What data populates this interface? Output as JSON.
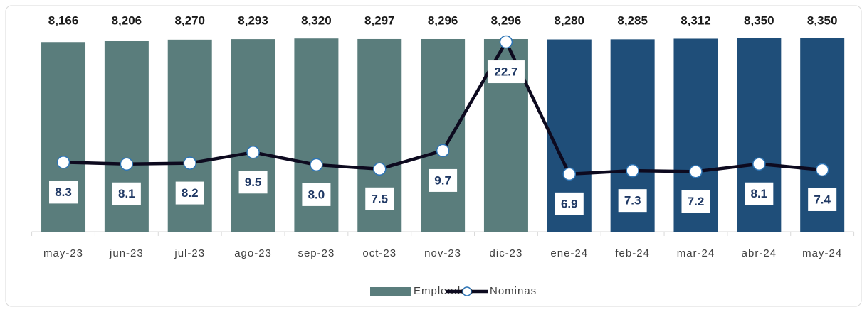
{
  "chart_data": {
    "type": "bar_line",
    "categories": [
      "may-23",
      "jun-23",
      "jul-23",
      "ago-23",
      "sep-23",
      "oct-23",
      "nov-23",
      "dic-23",
      "ene-24",
      "feb-24",
      "mar-24",
      "abr-24",
      "may-24"
    ],
    "series": [
      {
        "name": "Empleados",
        "type": "bar",
        "color": "#5a7d7c",
        "colors": [
          "#5a7d7c",
          "#5a7d7c",
          "#5a7d7c",
          "#5a7d7c",
          "#5a7d7c",
          "#5a7d7c",
          "#5a7d7c",
          "#5a7d7c",
          "#1f4e79",
          "#1f4e79",
          "#1f4e79",
          "#1f4e79",
          "#1f4e79"
        ],
        "values": [
          8166,
          8206,
          8270,
          8293,
          8320,
          8297,
          8296,
          8296,
          8280,
          8285,
          8312,
          8350,
          8350
        ],
        "value_labels": [
          "8,166",
          "8,206",
          "8,270",
          "8,293",
          "8,320",
          "8,297",
          "8,296",
          "8,296",
          "8,280",
          "8,285",
          "8,312",
          "8,350",
          "8,350"
        ]
      },
      {
        "name": "Nominas",
        "type": "line",
        "axis": "y2",
        "color": "#0d0a1f",
        "marker_color": "#2e75b6",
        "values": [
          8.3,
          8.1,
          8.2,
          9.5,
          8.0,
          7.5,
          9.7,
          22.7,
          6.9,
          7.3,
          7.2,
          8.1,
          7.4
        ],
        "value_labels": [
          "8.3",
          "8.1",
          "8.2",
          "9.5",
          "8.0",
          "7.5",
          "9.7",
          "22.7",
          "6.9",
          "7.3",
          "7.2",
          "8.1",
          "7.4"
        ]
      }
    ],
    "ylim": [
      0,
      9000
    ],
    "y2lim": [
      0,
      25
    ],
    "legend": "bottom"
  }
}
